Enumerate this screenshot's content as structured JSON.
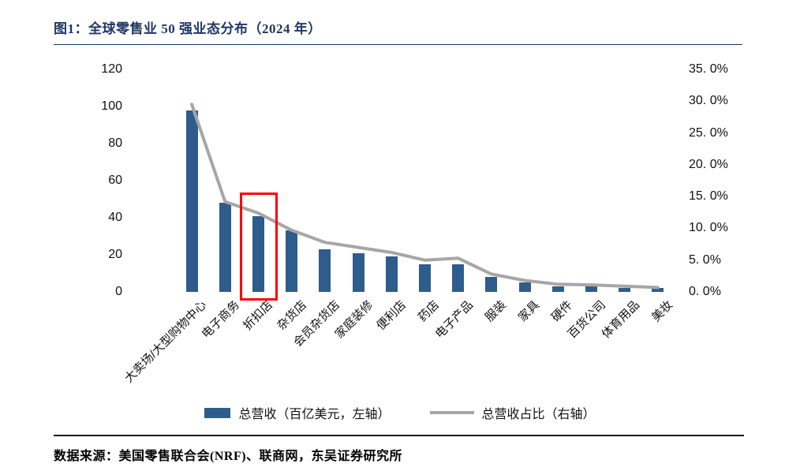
{
  "figure": {
    "title": "图1：全球零售业 50 强业态分布（2024 年）",
    "source": "数据来源：美国零售联合会(NRF)、联商网，东吴证券研究所"
  },
  "chart_data": {
    "type": "bar",
    "subtype": "combo-bar-line",
    "title": "全球零售业 50 强业态分布（2024 年）",
    "categories": [
      "大卖场/大型购物中心",
      "电子商务",
      "折扣店",
      "杂货店",
      "会员杂货店",
      "家庭装修",
      "便利店",
      "药店",
      "电子产品",
      "服装",
      "家具",
      "硬件",
      "百货公司",
      "体育用品",
      "美妆"
    ],
    "series": [
      {
        "name": "总营收（百亿美元，左轴）",
        "chart": "bar",
        "axis": "left",
        "values": [
          98,
          48,
          41,
          33,
          23,
          21,
          19,
          15,
          15,
          8,
          5,
          3,
          3,
          2,
          2
        ]
      },
      {
        "name": "总营收占比（右轴）",
        "chart": "line",
        "axis": "right",
        "values": [
          29.5,
          14.2,
          12.4,
          9.7,
          7.8,
          7.0,
          6.2,
          5.0,
          5.3,
          2.8,
          1.8,
          1.2,
          1.1,
          0.9,
          0.7
        ]
      }
    ],
    "left_axis": {
      "min": 0,
      "max": 120,
      "step": 20,
      "ticks": [
        "0",
        "20",
        "40",
        "60",
        "80",
        "100",
        "120"
      ]
    },
    "right_axis": {
      "min": 0,
      "max": 35,
      "step": 5,
      "ticks": [
        "0. 0%",
        "5. 0%",
        "10. 0%",
        "15. 0%",
        "20. 0%",
        "25. 0%",
        "30. 0%",
        "35. 0%"
      ]
    },
    "grid": false,
    "legend_position": "bottom",
    "annotation": {
      "type": "highlight-box",
      "category_index": 2,
      "category": "折扣店",
      "color": "#FF0000"
    },
    "colors": {
      "bar": "#2E5C8C",
      "line": "#A6A6A6",
      "title": "#1F3864"
    }
  },
  "legend": [
    {
      "label": "总营收（百亿美元，左轴）",
      "marker": "bar"
    },
    {
      "label": "总营收占比（右轴）",
      "marker": "line"
    }
  ]
}
